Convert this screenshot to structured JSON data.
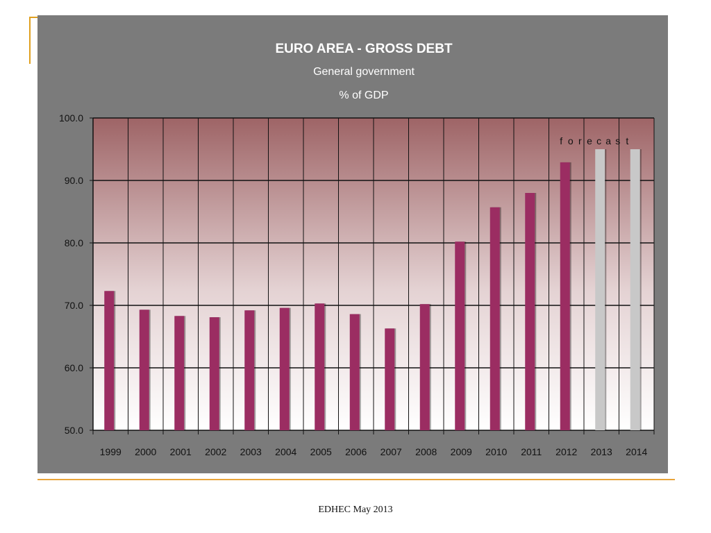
{
  "slide": {
    "footer": "EDHEC May 2013",
    "accent_color": "#e8a43a"
  },
  "chart_data": {
    "type": "bar",
    "title": "EURO  AREA  -  GROSS DEBT",
    "subtitle": [
      "General government",
      "%  of GDP"
    ],
    "annotation": "forecast",
    "categories": [
      "1999",
      "2000",
      "2001",
      "2002",
      "2003",
      "2004",
      "2005",
      "2006",
      "2007",
      "2008",
      "2009",
      "2010",
      "2011",
      "2012",
      "2013",
      "2014"
    ],
    "values": [
      72.3,
      69.3,
      68.3,
      68.1,
      69.2,
      69.6,
      70.3,
      68.6,
      66.3,
      70.2,
      80.2,
      85.7,
      88.0,
      92.9,
      95.0,
      95.0
    ],
    "forecast_from": "2013",
    "ylim": [
      50,
      100
    ],
    "yticks": [
      "50.0",
      "60.0",
      "70.0",
      "80.0",
      "90.0",
      "100.0"
    ],
    "xlabel": "",
    "ylabel": "",
    "grid": true,
    "colors": {
      "actual_bar": "#9b2d62",
      "forecast_bar": "#c8c8c8",
      "plot_top": "#9e6466",
      "plot_bottom": "#ffffff",
      "panel": "#7b7b7b"
    }
  }
}
